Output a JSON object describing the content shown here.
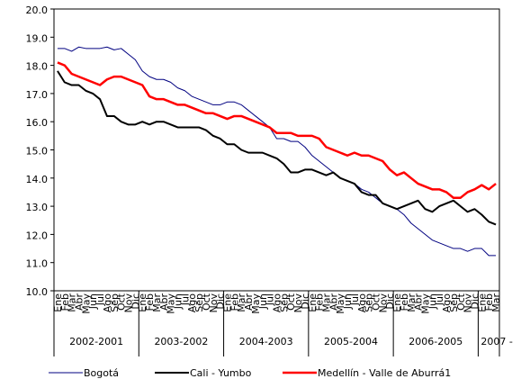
{
  "chart_data": {
    "type": "line",
    "category_groups": [
      {
        "label": "2002-2001",
        "categories": [
          "Ene",
          "Feb",
          "Mar",
          "Abr",
          "May",
          "Jun",
          "Jul",
          "Ago",
          "Sep",
          "Oct",
          "Nov",
          "Dic"
        ]
      },
      {
        "label": "2003-2002",
        "categories": [
          "Ene",
          "Feb",
          "Mar",
          "Abr",
          "May",
          "Jun",
          "Jul",
          "Ago",
          "Sep",
          "Oct",
          "Nov",
          "Dic"
        ]
      },
      {
        "label": "2004-2003",
        "categories": [
          "Ene",
          "Feb",
          "Mar",
          "Abr",
          "May",
          "Jun",
          "Jul",
          "Ago",
          "Sep",
          "Oct",
          "Nov",
          "Dic"
        ]
      },
      {
        "label": "2005-2004",
        "categories": [
          "Ene",
          "Feb",
          "Mar",
          "Abr",
          "May",
          "Jun",
          "Jul",
          "Ago",
          "Sep",
          "Oct",
          "Nov",
          "Dic"
        ]
      },
      {
        "label": "2006-2005",
        "categories": [
          "Ene",
          "Feb",
          "Mar",
          "Abr",
          "May",
          "Jun",
          "Jul",
          "Ago",
          "Sep",
          "Oct",
          "Nov",
          "Dic"
        ]
      },
      {
        "label": "2007 -",
        "categories": [
          "Ene",
          "Feb",
          "Mar"
        ]
      }
    ],
    "series": [
      {
        "name": "Bogotá",
        "color": "#000080",
        "width": 1,
        "values": [
          18.6,
          18.6,
          18.5,
          18.65,
          18.6,
          18.6,
          18.6,
          18.65,
          18.55,
          18.6,
          18.4,
          18.2,
          17.8,
          17.6,
          17.5,
          17.5,
          17.4,
          17.2,
          17.1,
          16.9,
          16.8,
          16.7,
          16.6,
          16.6,
          16.7,
          16.7,
          16.6,
          16.4,
          16.2,
          16.0,
          15.8,
          15.4,
          15.4,
          15.3,
          15.3,
          15.1,
          14.8,
          14.6,
          14.4,
          14.2,
          14.0,
          13.9,
          13.8,
          13.6,
          13.5,
          13.3,
          13.1,
          13.0,
          12.9,
          12.7,
          12.4,
          12.2,
          12.0,
          11.8,
          11.7,
          11.6,
          11.5,
          11.5,
          11.4,
          11.5,
          11.5,
          11.25,
          11.25
        ]
      },
      {
        "name": "Cali - Yumbo",
        "color": "#000000",
        "width": 2,
        "values": [
          17.8,
          17.4,
          17.3,
          17.3,
          17.1,
          17.0,
          16.8,
          16.2,
          16.2,
          16.0,
          15.9,
          15.9,
          16.0,
          15.9,
          16.0,
          16.0,
          15.9,
          15.8,
          15.8,
          15.8,
          15.8,
          15.7,
          15.5,
          15.4,
          15.2,
          15.2,
          15.0,
          14.9,
          14.9,
          14.9,
          14.8,
          14.7,
          14.5,
          14.2,
          14.2,
          14.3,
          14.3,
          14.2,
          14.1,
          14.2,
          14.0,
          13.9,
          13.8,
          13.5,
          13.4,
          13.4,
          13.1,
          13.0,
          12.9,
          13.0,
          13.1,
          13.2,
          12.9,
          12.8,
          13.0,
          13.1,
          13.2,
          13.0,
          12.8,
          12.9,
          12.7,
          12.45,
          12.35
        ]
      },
      {
        "name": "Medellín - Valle de Aburrá1",
        "color": "#ff0000",
        "width": 2.5,
        "values": [
          18.1,
          18.0,
          17.7,
          17.6,
          17.5,
          17.4,
          17.3,
          17.5,
          17.6,
          17.6,
          17.5,
          17.4,
          17.3,
          16.9,
          16.8,
          16.8,
          16.7,
          16.6,
          16.6,
          16.5,
          16.4,
          16.3,
          16.3,
          16.2,
          16.1,
          16.2,
          16.2,
          16.1,
          16.0,
          15.9,
          15.8,
          15.6,
          15.6,
          15.6,
          15.5,
          15.5,
          15.5,
          15.4,
          15.1,
          15.0,
          14.9,
          14.8,
          14.9,
          14.8,
          14.8,
          14.7,
          14.6,
          14.3,
          14.1,
          14.2,
          14.0,
          13.8,
          13.7,
          13.6,
          13.6,
          13.5,
          13.3,
          13.3,
          13.5,
          13.6,
          13.75,
          13.6,
          13.8
        ]
      }
    ],
    "ylim": [
      10,
      20
    ],
    "yticks": [
      {
        "value": 10,
        "label": "10.0"
      },
      {
        "value": 11,
        "label": "11.0"
      },
      {
        "value": 12,
        "label": "12.0"
      },
      {
        "value": 13,
        "label": "13.0"
      },
      {
        "value": 14,
        "label": "14.0"
      },
      {
        "value": 15,
        "label": "15.0"
      },
      {
        "value": 16,
        "label": "16.0"
      },
      {
        "value": 17,
        "label": "17.0"
      },
      {
        "value": 18,
        "label": "18.0"
      },
      {
        "value": 19,
        "label": "19.0"
      },
      {
        "value": 20,
        "label": "20.0"
      }
    ],
    "grid": false,
    "legend": "bottom"
  }
}
